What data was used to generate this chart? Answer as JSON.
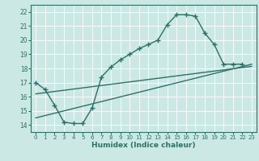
{
  "xlabel": "Humidex (Indice chaleur)",
  "bg_color": "#cce8e4",
  "line_color": "#2d7068",
  "grid_color": "#ffffff",
  "xlim": [
    -0.5,
    23.5
  ],
  "ylim": [
    13.5,
    22.5
  ],
  "xticks": [
    0,
    1,
    2,
    3,
    4,
    5,
    6,
    7,
    8,
    9,
    10,
    11,
    12,
    13,
    14,
    15,
    16,
    17,
    18,
    19,
    20,
    21,
    22,
    23
  ],
  "yticks": [
    14,
    15,
    16,
    17,
    18,
    19,
    20,
    21,
    22
  ],
  "line1_x": [
    0,
    1,
    2,
    3,
    4,
    5,
    6,
    7,
    8,
    9,
    10,
    11,
    12,
    13,
    14,
    15,
    16,
    17,
    18,
    19,
    20,
    21,
    22
  ],
  "line1_y": [
    17.0,
    16.5,
    15.4,
    14.2,
    14.1,
    14.1,
    15.2,
    17.4,
    18.1,
    18.6,
    19.0,
    19.4,
    19.7,
    20.0,
    21.1,
    21.8,
    21.8,
    21.7,
    20.5,
    19.7,
    18.3,
    18.3,
    18.3
  ],
  "line2_x": [
    0,
    23
  ],
  "line2_y": [
    14.5,
    18.3
  ],
  "line3_x": [
    0,
    23
  ],
  "line3_y": [
    16.2,
    18.15
  ],
  "marker_size": 2.5,
  "linewidth": 1.0
}
